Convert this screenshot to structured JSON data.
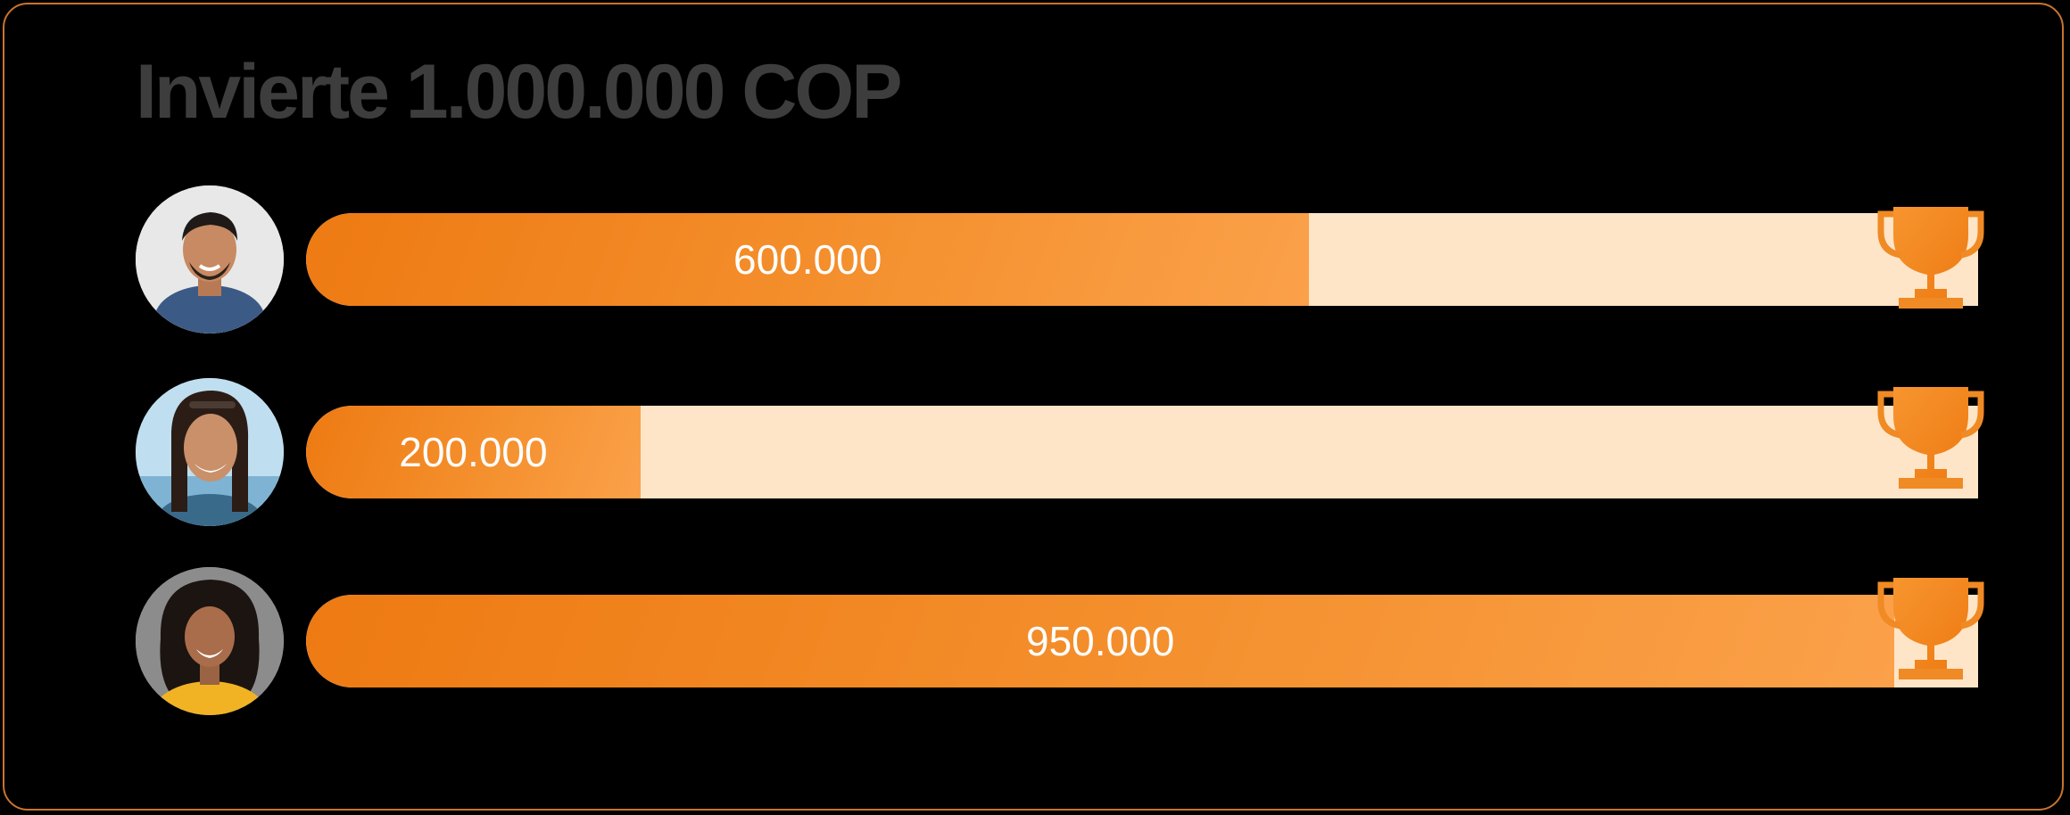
{
  "title": "Invierte 1.000.000 COP",
  "colors": {
    "accent": "#f08a24",
    "track": "#ffe5c7",
    "border": "#c8742d",
    "title": "#3d3d3d",
    "background": "#000000"
  },
  "goal": 1000000,
  "participants": [
    {
      "amount_label": "600.000",
      "amount": 600000,
      "progress": 0.6,
      "avatar_icon": "person-avatar-icon"
    },
    {
      "amount_label": "200.000",
      "amount": 200000,
      "progress": 0.2,
      "avatar_icon": "person-avatar-icon"
    },
    {
      "amount_label": "950.000",
      "amount": 950000,
      "progress": 0.95,
      "avatar_icon": "person-avatar-icon"
    }
  ],
  "goal_icon": "trophy-icon"
}
